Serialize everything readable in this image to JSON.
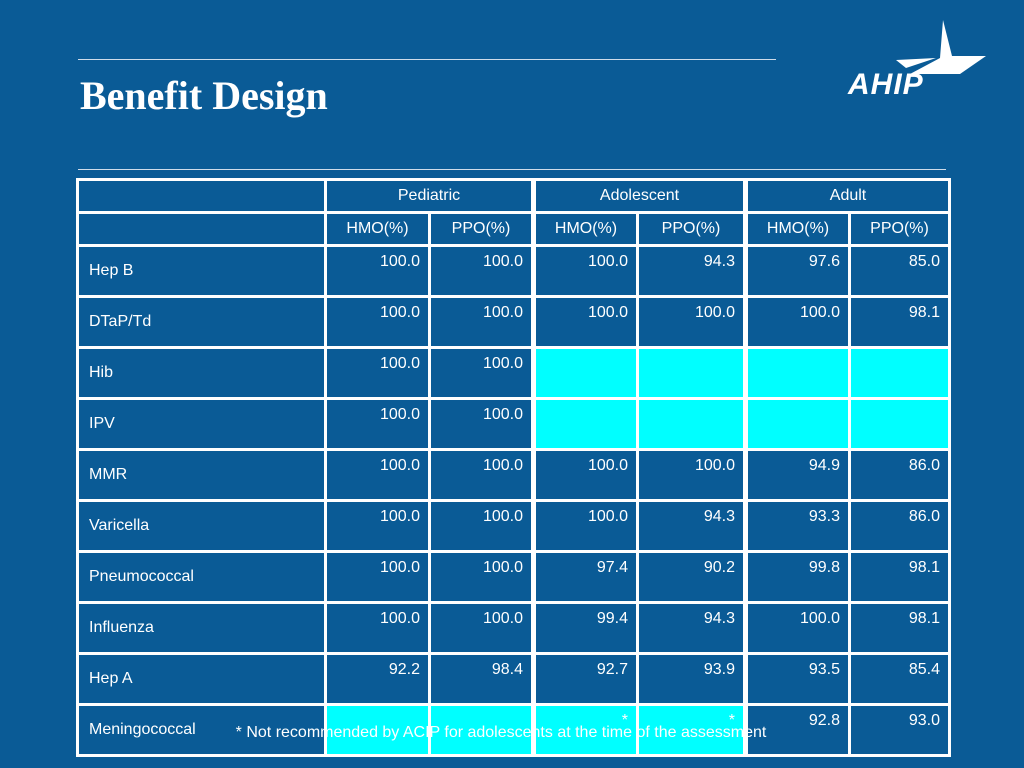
{
  "slide": {
    "title": "Benefit Design",
    "logo_text": "AHIP",
    "footnote": "* Not recommended by ACIP for adolescents at the time of the assessment"
  },
  "table": {
    "groups": [
      "Pediatric",
      "Adolescent",
      "Adult"
    ],
    "subheaders": [
      "HMO(%)",
      "PPO(%)",
      "HMO(%)",
      "PPO(%)",
      "HMO(%)",
      "PPO(%)"
    ],
    "rows": [
      {
        "name": "Hep B",
        "values": [
          "100.0",
          "100.0",
          "100.0",
          "94.3",
          "97.6",
          "85.0"
        ]
      },
      {
        "name": "DTaP/Td",
        "values": [
          "100.0",
          "100.0",
          "100.0",
          "100.0",
          "100.0",
          "98.1"
        ]
      },
      {
        "name": "Hib",
        "values": [
          "100.0",
          "100.0",
          "",
          "",
          "",
          ""
        ]
      },
      {
        "name": "IPV",
        "values": [
          "100.0",
          "100.0",
          "",
          "",
          "",
          ""
        ]
      },
      {
        "name": "MMR",
        "values": [
          "100.0",
          "100.0",
          "100.0",
          "100.0",
          "94.9",
          "86.0"
        ]
      },
      {
        "name": "Varicella",
        "values": [
          "100.0",
          "100.0",
          "100.0",
          "94.3",
          "93.3",
          "86.0"
        ]
      },
      {
        "name": "Pneumococcal",
        "values": [
          "100.0",
          "100.0",
          "97.4",
          "90.2",
          "99.8",
          "98.1"
        ]
      },
      {
        "name": "Influenza",
        "values": [
          "100.0",
          "100.0",
          "99.4",
          "94.3",
          "100.0",
          "98.1"
        ]
      },
      {
        "name": "Hep A",
        "values": [
          "92.2",
          "98.4",
          "92.7",
          "93.9",
          "93.5",
          "85.4"
        ]
      },
      {
        "name": "Meningococcal",
        "values": [
          "",
          "",
          "*",
          "*",
          "92.8",
          "93.0"
        ]
      }
    ],
    "highlight_color": "#00ffff",
    "highlighted_cells": [
      [
        2,
        2
      ],
      [
        2,
        3
      ],
      [
        2,
        4
      ],
      [
        2,
        5
      ],
      [
        3,
        2
      ],
      [
        3,
        3
      ],
      [
        3,
        4
      ],
      [
        3,
        5
      ],
      [
        9,
        0
      ],
      [
        9,
        1
      ],
      [
        9,
        2
      ],
      [
        9,
        3
      ]
    ]
  },
  "colors": {
    "background": "#0a5b96",
    "text": "#ffffff",
    "grid": "#ffffff"
  }
}
